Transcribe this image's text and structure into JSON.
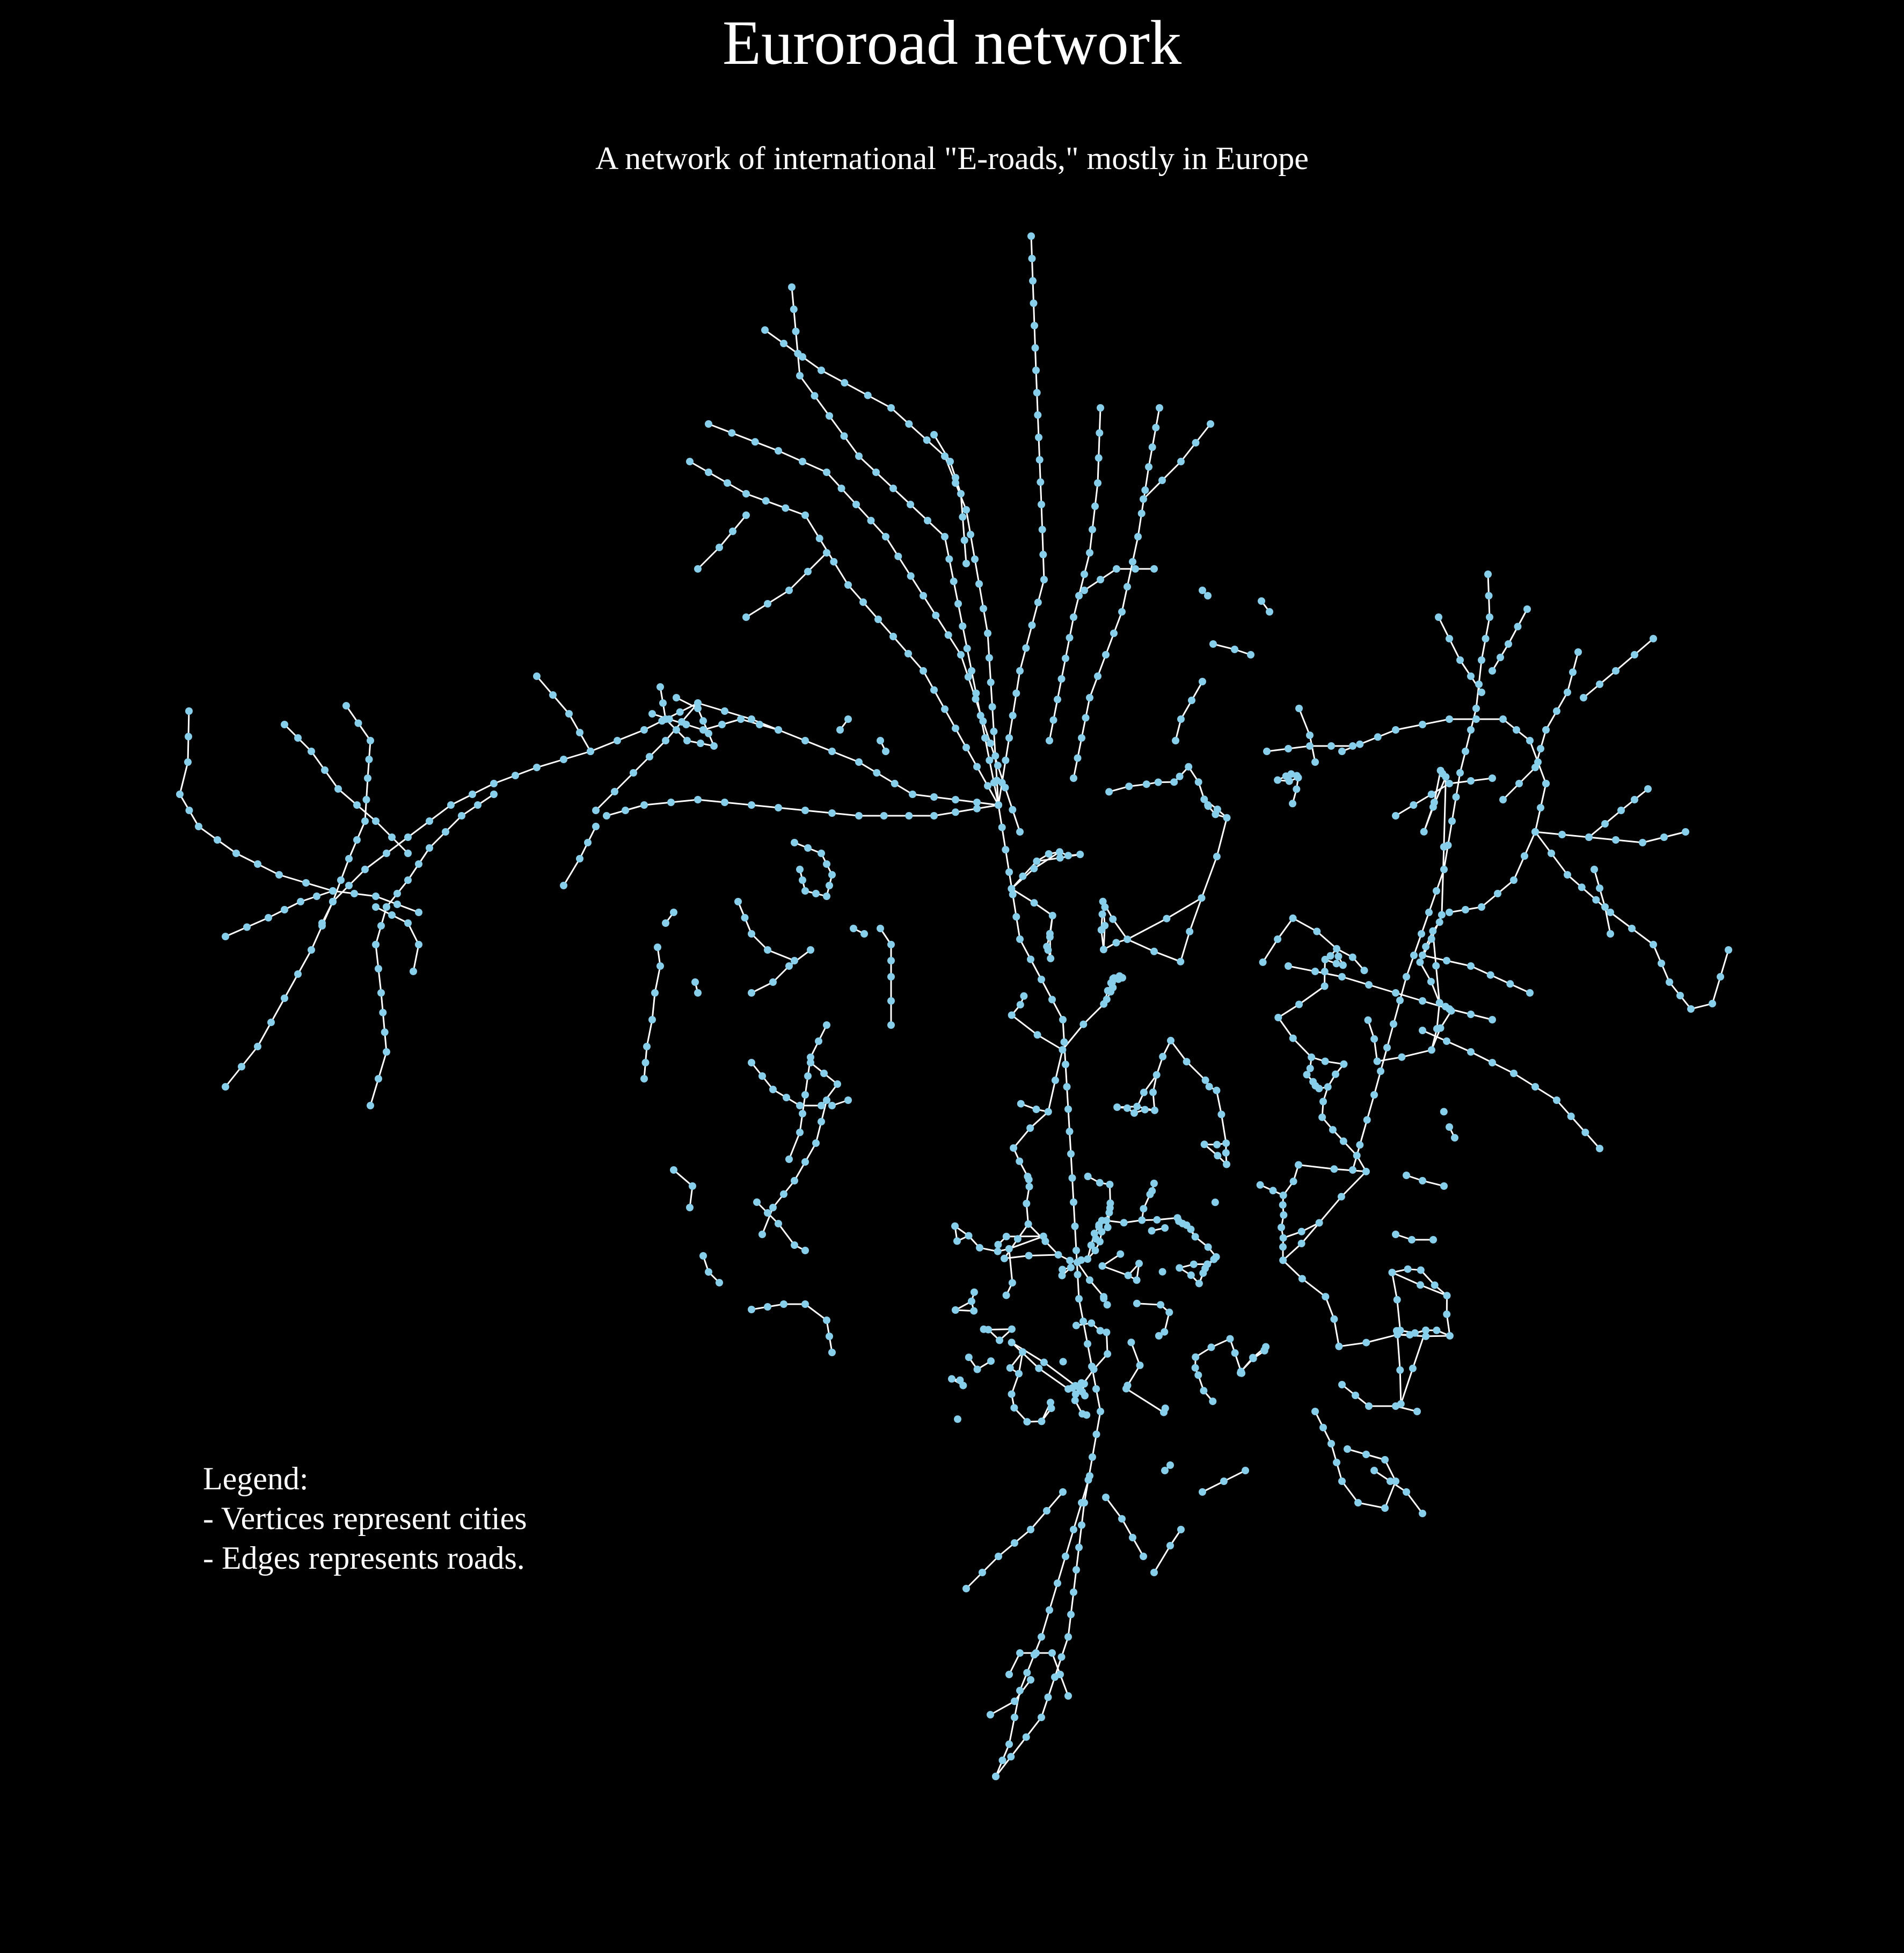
{
  "title": "Euroroad network",
  "subtitle": "A network of international \"E-roads,\" mostly in Europe",
  "legend": {
    "heading": "Legend:",
    "items": [
      "- Vertices represent cities",
      "- Edges represents roads."
    ]
  },
  "colors": {
    "background": "#000000",
    "vertex": "#87ceeb",
    "edge": "#ffffff",
    "text": "#ffffff"
  }
}
